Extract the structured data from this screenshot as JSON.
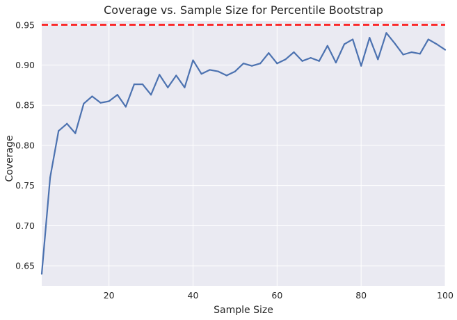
{
  "chart_data": {
    "type": "line",
    "title": "Coverage vs. Sample Size for Percentile Bootstrap",
    "xlabel": "Sample Size",
    "ylabel": "Coverage",
    "xlim": [
      4,
      100
    ],
    "ylim": [
      0.625,
      0.955
    ],
    "grid": true,
    "x_ticks": [
      20,
      40,
      60,
      80,
      100
    ],
    "y_ticks": [
      0.65,
      0.7,
      0.75,
      0.8,
      0.85,
      0.9,
      0.95
    ],
    "reference_line": {
      "y": 0.95,
      "style": "dashed",
      "color": "#ff0000"
    },
    "series": [
      {
        "color": "#4c72b0",
        "x": [
          4,
          6,
          8,
          10,
          12,
          14,
          16,
          18,
          20,
          22,
          24,
          26,
          28,
          30,
          32,
          34,
          36,
          38,
          40,
          42,
          44,
          46,
          48,
          50,
          52,
          54,
          56,
          58,
          60,
          62,
          64,
          66,
          68,
          70,
          72,
          74,
          76,
          78,
          80,
          82,
          84,
          86,
          88,
          90,
          92,
          94,
          96,
          98,
          100
        ],
        "y": [
          0.64,
          0.76,
          0.818,
          0.827,
          0.815,
          0.852,
          0.861,
          0.853,
          0.855,
          0.863,
          0.848,
          0.876,
          0.876,
          0.863,
          0.888,
          0.872,
          0.887,
          0.872,
          0.906,
          0.889,
          0.894,
          0.892,
          0.887,
          0.892,
          0.902,
          0.899,
          0.902,
          0.915,
          0.902,
          0.907,
          0.916,
          0.905,
          0.909,
          0.905,
          0.924,
          0.903,
          0.926,
          0.932,
          0.899,
          0.934,
          0.907,
          0.94,
          0.927,
          0.913,
          0.916,
          0.914,
          0.932,
          0.926,
          0.919
        ]
      }
    ]
  }
}
